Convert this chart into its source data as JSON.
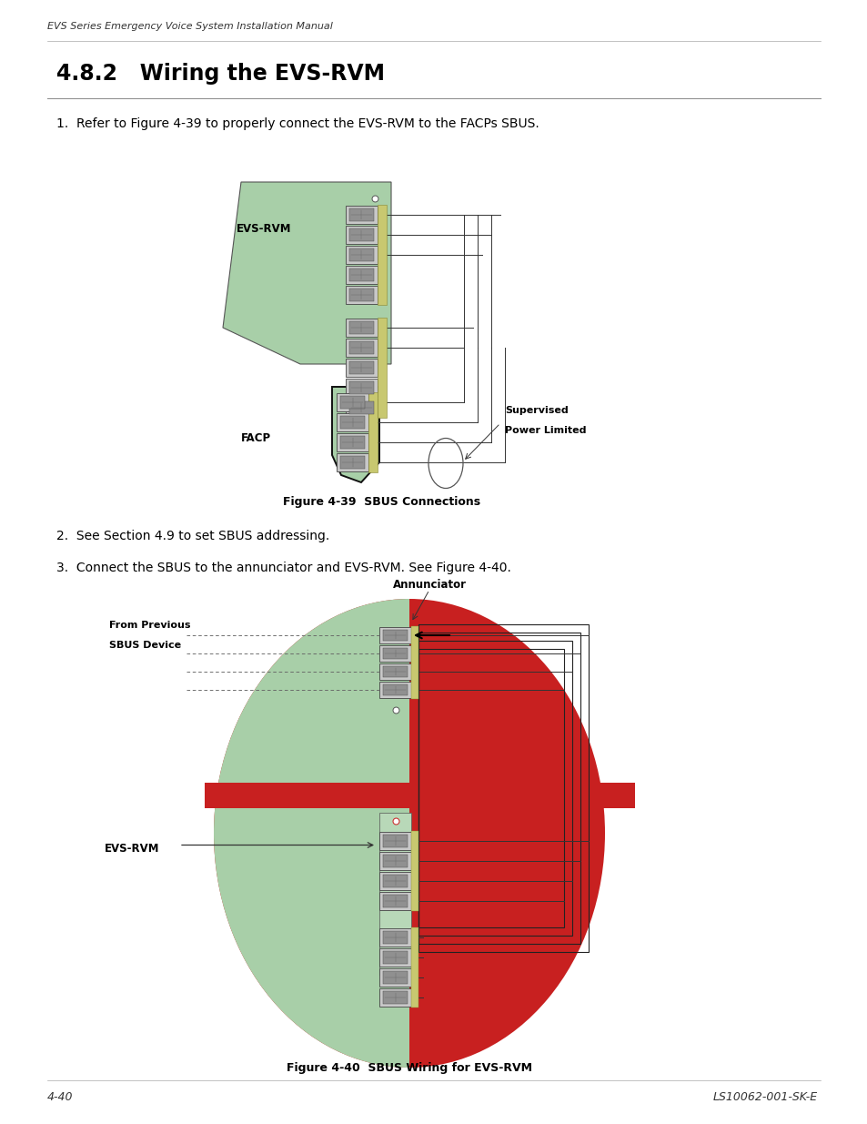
{
  "page_width": 9.54,
  "page_height": 12.35,
  "bg_color": "#ffffff",
  "header_text": "EVS Series Emergency Voice System Installation Manual",
  "header_fontsize": 8.0,
  "section_title": "4.8.2   Wiring the EVS-RVM",
  "section_title_fontsize": 17,
  "body_text_fontsize": 10.0,
  "item1": "1.  Refer to Figure 4-39 to properly connect the EVS-RVM to the FACPs SBUS.",
  "item2": "2.  See Section 4.9 to set SBUS addressing.",
  "item3": "3.  Connect the SBUS to the annunciator and EVS-RVM. See Figure 4-40.",
  "fig1_caption": "Figure 4-39  SBUS Connections",
  "fig2_caption": "Figure 4-40  SBUS Wiring for EVS-RVM",
  "footer_left": "4-40",
  "footer_right": "LS10062-001-SK-E",
  "footer_fontsize": 9,
  "green_color": "#a8cfa8",
  "red_color": "#c82020",
  "yellow_green": "#c8c870",
  "wire_color": "#333333",
  "conn_bg": "#c8c8c8",
  "conn_edge": "#444444"
}
